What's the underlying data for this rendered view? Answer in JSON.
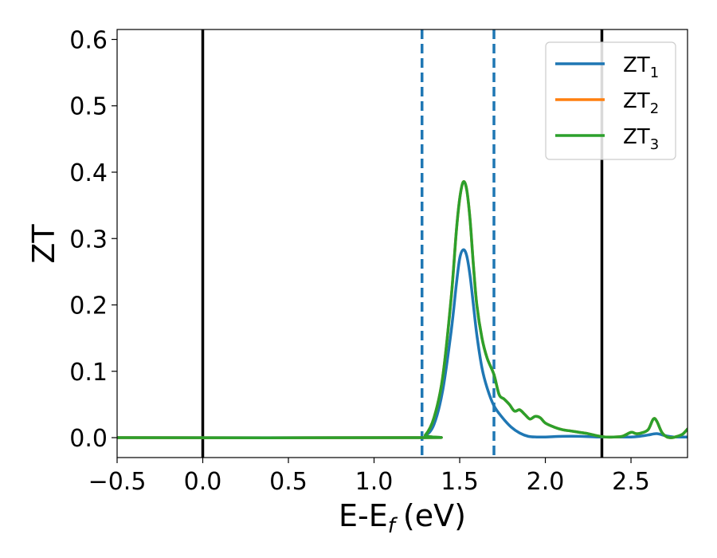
{
  "chart_data": {
    "type": "line",
    "xlabel": "E-E",
    "xlabel_sub": "f",
    "xlabel_unit": "(eV)",
    "ylabel": "ZT",
    "xlim": [
      -0.5,
      2.83
    ],
    "ylim": [
      -0.03,
      0.615
    ],
    "xticks": [
      -0.5,
      0.0,
      0.5,
      1.0,
      1.5,
      2.0,
      2.5
    ],
    "xtick_labels": [
      "−0.5",
      "0.0",
      "0.5",
      "1.0",
      "1.5",
      "2.0",
      "2.5"
    ],
    "yticks": [
      0.0,
      0.1,
      0.2,
      0.3,
      0.4,
      0.5,
      0.6
    ],
    "ytick_labels": [
      "0.0",
      "0.1",
      "0.2",
      "0.3",
      "0.4",
      "0.5",
      "0.6"
    ],
    "grid": false,
    "legend_position": "top-right",
    "vlines_solid": [
      0.0,
      2.33
    ],
    "vlines_dashed": [
      1.28,
      1.7
    ],
    "series": [
      {
        "name": "ZT",
        "name_sub": "1",
        "color": "#1f77b4",
        "x": [
          -0.5,
          1.25,
          1.3,
          1.35,
          1.4,
          1.45,
          1.48,
          1.5,
          1.52,
          1.54,
          1.56,
          1.58,
          1.6,
          1.63,
          1.66,
          1.7,
          1.75,
          1.8,
          1.85,
          1.9,
          1.95,
          2.0,
          2.1,
          2.2,
          2.3,
          2.4,
          2.5,
          2.55,
          2.6,
          2.65,
          2.7,
          2.75,
          2.83
        ],
        "y": [
          0.0,
          0.0,
          0.003,
          0.02,
          0.07,
          0.16,
          0.23,
          0.27,
          0.283,
          0.275,
          0.245,
          0.2,
          0.155,
          0.105,
          0.075,
          0.048,
          0.03,
          0.016,
          0.007,
          0.002,
          0.001,
          0.001,
          0.002,
          0.002,
          0.001,
          0.001,
          0.001,
          0.002,
          0.004,
          0.006,
          0.003,
          0.001,
          0.001
        ]
      },
      {
        "name": "ZT",
        "name_sub": "2",
        "color": "#ff7f0e",
        "x": [
          -0.5,
          1.25,
          1.3,
          1.35,
          1.4,
          1.45,
          1.48,
          1.5,
          1.52,
          1.54,
          1.56,
          1.58,
          1.6,
          1.63,
          1.66,
          1.7,
          1.73,
          1.76,
          1.79,
          1.82,
          1.85,
          1.88,
          1.91,
          1.94,
          1.97,
          2.0,
          2.05,
          2.1,
          2.15,
          2.2,
          2.25,
          2.3,
          2.35,
          2.4,
          2.45,
          2.5,
          2.53,
          2.56,
          2.6,
          2.63,
          2.65,
          2.68,
          2.71,
          2.74,
          2.77,
          2.8,
          2.83
        ],
        "y": [
          0.0,
          0.0,
          0.004,
          0.03,
          0.09,
          0.21,
          0.31,
          0.36,
          0.385,
          0.375,
          0.33,
          0.26,
          0.2,
          0.15,
          0.12,
          0.095,
          0.065,
          0.058,
          0.05,
          0.04,
          0.042,
          0.035,
          0.028,
          0.032,
          0.03,
          0.022,
          0.016,
          0.012,
          0.01,
          0.008,
          0.006,
          0.003,
          0.001,
          0.001,
          0.002,
          0.008,
          0.006,
          0.007,
          0.012,
          0.028,
          0.025,
          0.008,
          0.001,
          0.0,
          0.002,
          0.005,
          0.013
        ]
      },
      {
        "name": "ZT",
        "name_sub": "3",
        "color": "#2ca02c",
        "x": [
          -0.5,
          1.25,
          1.3,
          1.35,
          1.4,
          1.45,
          1.48,
          1.5,
          1.52,
          1.54,
          1.56,
          1.58,
          1.6,
          1.63,
          1.66,
          1.7,
          1.73,
          1.76,
          1.79,
          1.82,
          1.85,
          1.88,
          1.91,
          1.94,
          1.97,
          2.0,
          2.05,
          2.1,
          2.15,
          2.2,
          2.25,
          2.3,
          2.35,
          2.4,
          2.45,
          2.5,
          2.53,
          2.56,
          2.6,
          2.63,
          2.65,
          2.68,
          2.71,
          2.74,
          2.77,
          2.8,
          2.83
        ],
        "y": [
          0.0,
          0.0,
          0.004,
          0.03,
          0.09,
          0.21,
          0.31,
          0.36,
          0.385,
          0.375,
          0.33,
          0.26,
          0.2,
          0.15,
          0.12,
          0.095,
          0.065,
          0.058,
          0.05,
          0.04,
          0.042,
          0.035,
          0.028,
          0.032,
          0.03,
          0.022,
          0.016,
          0.012,
          0.01,
          0.008,
          0.006,
          0.003,
          0.001,
          0.001,
          0.002,
          0.008,
          0.006,
          0.007,
          0.012,
          0.028,
          0.025,
          0.008,
          0.001,
          0.0,
          0.002,
          0.005,
          0.013
        ]
      }
    ]
  }
}
